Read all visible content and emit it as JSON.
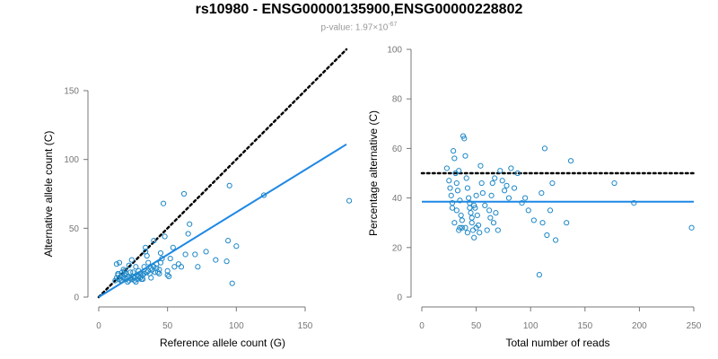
{
  "title": "rs10980 - ENSG00000135900,ENSG00000228802",
  "subtitle": {
    "prefix": "p-value: 1.97×10",
    "exponent": "-67"
  },
  "colors": {
    "points": "#1e88c8",
    "fit": "#1e88e5",
    "reference": "#000000",
    "axis": "#777777"
  },
  "chart_data": [
    {
      "type": "scatter",
      "xlabel": "Reference allele count (G)",
      "ylabel": "Alternative allele count (C)",
      "xlim": [
        0,
        180
      ],
      "ylim": [
        0,
        150
      ],
      "xticks": [
        "0",
        "50",
        "100",
        "150"
      ],
      "yticks": [
        "0",
        "50",
        "100",
        "150"
      ],
      "reference_line": {
        "style": "dotted",
        "from": [
          0,
          0
        ],
        "to": [
          180,
          180
        ]
      },
      "fit_line": {
        "from": [
          0,
          0
        ],
        "to": [
          180,
          111
        ]
      },
      "points": [
        [
          13,
          24
        ],
        [
          15,
          25
        ],
        [
          14,
          17
        ],
        [
          15,
          13
        ],
        [
          16,
          12
        ],
        [
          17,
          12
        ],
        [
          18,
          14
        ],
        [
          19,
          16
        ],
        [
          20,
          13
        ],
        [
          21,
          11
        ],
        [
          22,
          12
        ],
        [
          23,
          18
        ],
        [
          17,
          18
        ],
        [
          18,
          20
        ],
        [
          19,
          19
        ],
        [
          24,
          27
        ],
        [
          25,
          15
        ],
        [
          26,
          12
        ],
        [
          27,
          11
        ],
        [
          28,
          13
        ],
        [
          29,
          15
        ],
        [
          30,
          17
        ],
        [
          31,
          13
        ],
        [
          32,
          16
        ],
        [
          33,
          22
        ],
        [
          34,
          33
        ],
        [
          34,
          36
        ],
        [
          35,
          30
        ],
        [
          36,
          25
        ],
        [
          38,
          14
        ],
        [
          39,
          20
        ],
        [
          40,
          41
        ],
        [
          41,
          18
        ],
        [
          42,
          21
        ],
        [
          43,
          18
        ],
        [
          44,
          20
        ],
        [
          45,
          25
        ],
        [
          45,
          32
        ],
        [
          46,
          28
        ],
        [
          47,
          68
        ],
        [
          48,
          44
        ],
        [
          50,
          19
        ],
        [
          50,
          16
        ],
        [
          51,
          15
        ],
        [
          52,
          28
        ],
        [
          54,
          36
        ],
        [
          55,
          22
        ],
        [
          58,
          24
        ],
        [
          60,
          22
        ],
        [
          62,
          75
        ],
        [
          63,
          31
        ],
        [
          65,
          46
        ],
        [
          66,
          53
        ],
        [
          70,
          31
        ],
        [
          72,
          22
        ],
        [
          78,
          33
        ],
        [
          85,
          27
        ],
        [
          93,
          26
        ],
        [
          94,
          41
        ],
        [
          95,
          81
        ],
        [
          97,
          10
        ],
        [
          100,
          37
        ],
        [
          120,
          74
        ],
        [
          182,
          70
        ],
        [
          22,
          23
        ],
        [
          25,
          18
        ],
        [
          27,
          22
        ],
        [
          29,
          19
        ],
        [
          31,
          17
        ],
        [
          35,
          18
        ],
        [
          37,
          17
        ],
        [
          12,
          12
        ],
        [
          13,
          14
        ],
        [
          14,
          16
        ],
        [
          16,
          15
        ],
        [
          17,
          16
        ],
        [
          20,
          17
        ],
        [
          21,
          15
        ],
        [
          23,
          14
        ],
        [
          24,
          13
        ],
        [
          26,
          14
        ],
        [
          28,
          16
        ],
        [
          30,
          14
        ],
        [
          32,
          13
        ],
        [
          33,
          17
        ],
        [
          36,
          19
        ],
        [
          38,
          21
        ],
        [
          40,
          22
        ],
        [
          42,
          24
        ],
        [
          44,
          17
        ]
      ]
    },
    {
      "type": "scatter",
      "xlabel": "Total number of reads",
      "ylabel": "Percentage alternative (C)",
      "xlim": [
        0,
        250
      ],
      "ylim": [
        0,
        100
      ],
      "xticks": [
        "0",
        "50",
        "100",
        "150",
        "200",
        "250"
      ],
      "yticks": [
        "0",
        "20",
        "40",
        "60",
        "80",
        "100"
      ],
      "reference_line": {
        "style": "dotted",
        "y": 50
      },
      "fit_line": {
        "y": 38.5
      },
      "points": [
        [
          23,
          52
        ],
        [
          25,
          47
        ],
        [
          26,
          44
        ],
        [
          27,
          41
        ],
        [
          28,
          38
        ],
        [
          29,
          59
        ],
        [
          30,
          56
        ],
        [
          31,
          50
        ],
        [
          32,
          46
        ],
        [
          33,
          43
        ],
        [
          34,
          51
        ],
        [
          35,
          39
        ],
        [
          36,
          33
        ],
        [
          37,
          28
        ],
        [
          38,
          65
        ],
        [
          39,
          64
        ],
        [
          40,
          57
        ],
        [
          41,
          48
        ],
        [
          42,
          44
        ],
        [
          43,
          40
        ],
        [
          44,
          38
        ],
        [
          45,
          34
        ],
        [
          46,
          30
        ],
        [
          47,
          27
        ],
        [
          48,
          24
        ],
        [
          49,
          36
        ],
        [
          50,
          41
        ],
        [
          51,
          33
        ],
        [
          52,
          29
        ],
        [
          53,
          26
        ],
        [
          54,
          53
        ],
        [
          55,
          46
        ],
        [
          56,
          42
        ],
        [
          58,
          37
        ],
        [
          60,
          27
        ],
        [
          62,
          35
        ],
        [
          63,
          32
        ],
        [
          64,
          41
        ],
        [
          65,
          46
        ],
        [
          66,
          30
        ],
        [
          67,
          48
        ],
        [
          68,
          34
        ],
        [
          70,
          27
        ],
        [
          72,
          51
        ],
        [
          74,
          47
        ],
        [
          76,
          43
        ],
        [
          78,
          45
        ],
        [
          80,
          40
        ],
        [
          82,
          52
        ],
        [
          85,
          44
        ],
        [
          88,
          50
        ],
        [
          92,
          38
        ],
        [
          95,
          40
        ],
        [
          98,
          35
        ],
        [
          103,
          31
        ],
        [
          108,
          9
        ],
        [
          110,
          42
        ],
        [
          111,
          30
        ],
        [
          113,
          60
        ],
        [
          115,
          25
        ],
        [
          118,
          35
        ],
        [
          120,
          46
        ],
        [
          123,
          23
        ],
        [
          133,
          30
        ],
        [
          137,
          55
        ],
        [
          177,
          46
        ],
        [
          195,
          38
        ],
        [
          248,
          28
        ],
        [
          30,
          30
        ],
        [
          32,
          35
        ],
        [
          35,
          28
        ],
        [
          37,
          31
        ],
        [
          40,
          28
        ],
        [
          42,
          26
        ],
        [
          44,
          36
        ],
        [
          46,
          32
        ],
        [
          48,
          37
        ],
        [
          50,
          28
        ],
        [
          34,
          27
        ],
        [
          28,
          36
        ]
      ]
    }
  ]
}
